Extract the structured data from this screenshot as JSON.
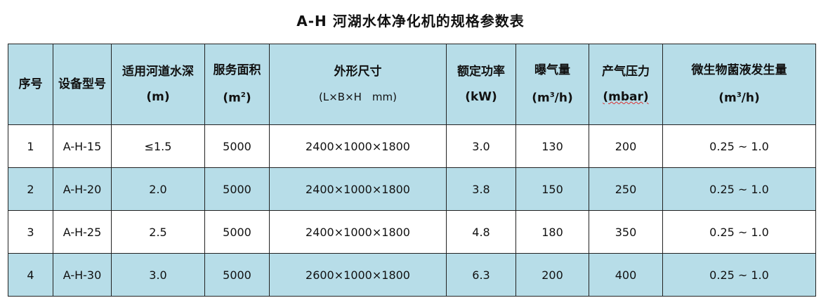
{
  "title": "A-H 河湖水体净化机的规格参数表",
  "header_bg": "#b7dde8",
  "columns": [
    {
      "label": "序号",
      "unit_pre": "",
      "unit_sup": "",
      "unit_post": ""
    },
    {
      "label": "设备型号",
      "unit_pre": "",
      "unit_sup": "",
      "unit_post": ""
    },
    {
      "label": "适用河道水深",
      "unit_pre": "(m)",
      "unit_sup": "",
      "unit_post": ""
    },
    {
      "label": "服务面积",
      "unit_pre": "(m",
      "unit_sup": "2",
      "unit_post": ")"
    },
    {
      "label": "外形尺寸",
      "unit_pre": "(L×B×H　mm)",
      "unit_sup": "",
      "unit_post": ""
    },
    {
      "label": "额定功率",
      "unit_pre": "(kW)",
      "unit_sup": "",
      "unit_post": ""
    },
    {
      "label": "曝气量",
      "unit_pre": "(m",
      "unit_sup": "3",
      "unit_post": "/h)"
    },
    {
      "label": "产气压力",
      "unit_pre": "(mbar)",
      "unit_sup": "",
      "unit_post": ""
    },
    {
      "label": "微生物菌液发生量",
      "unit_pre": "(m",
      "unit_sup": "3",
      "unit_post": "/h)"
    }
  ],
  "rows": [
    [
      "1",
      "A-H-15",
      "≤1.5",
      "5000",
      "2400×1000×1800",
      "3.0",
      "130",
      "200",
      "0.25 ~ 1.0"
    ],
    [
      "2",
      "A-H-20",
      "2.0",
      "5000",
      "2400×1000×1800",
      "3.8",
      "150",
      "250",
      "0.25 ~ 1.0"
    ],
    [
      "3",
      "A-H-25",
      "2.5",
      "5000",
      "2400×1000×1800",
      "4.8",
      "180",
      "350",
      "0.25 ~ 1.0"
    ],
    [
      "4",
      "A-H-30",
      "3.0",
      "5000",
      "2600×1000×1800",
      "6.3",
      "200",
      "400",
      "0.25 ~ 1.0"
    ]
  ]
}
